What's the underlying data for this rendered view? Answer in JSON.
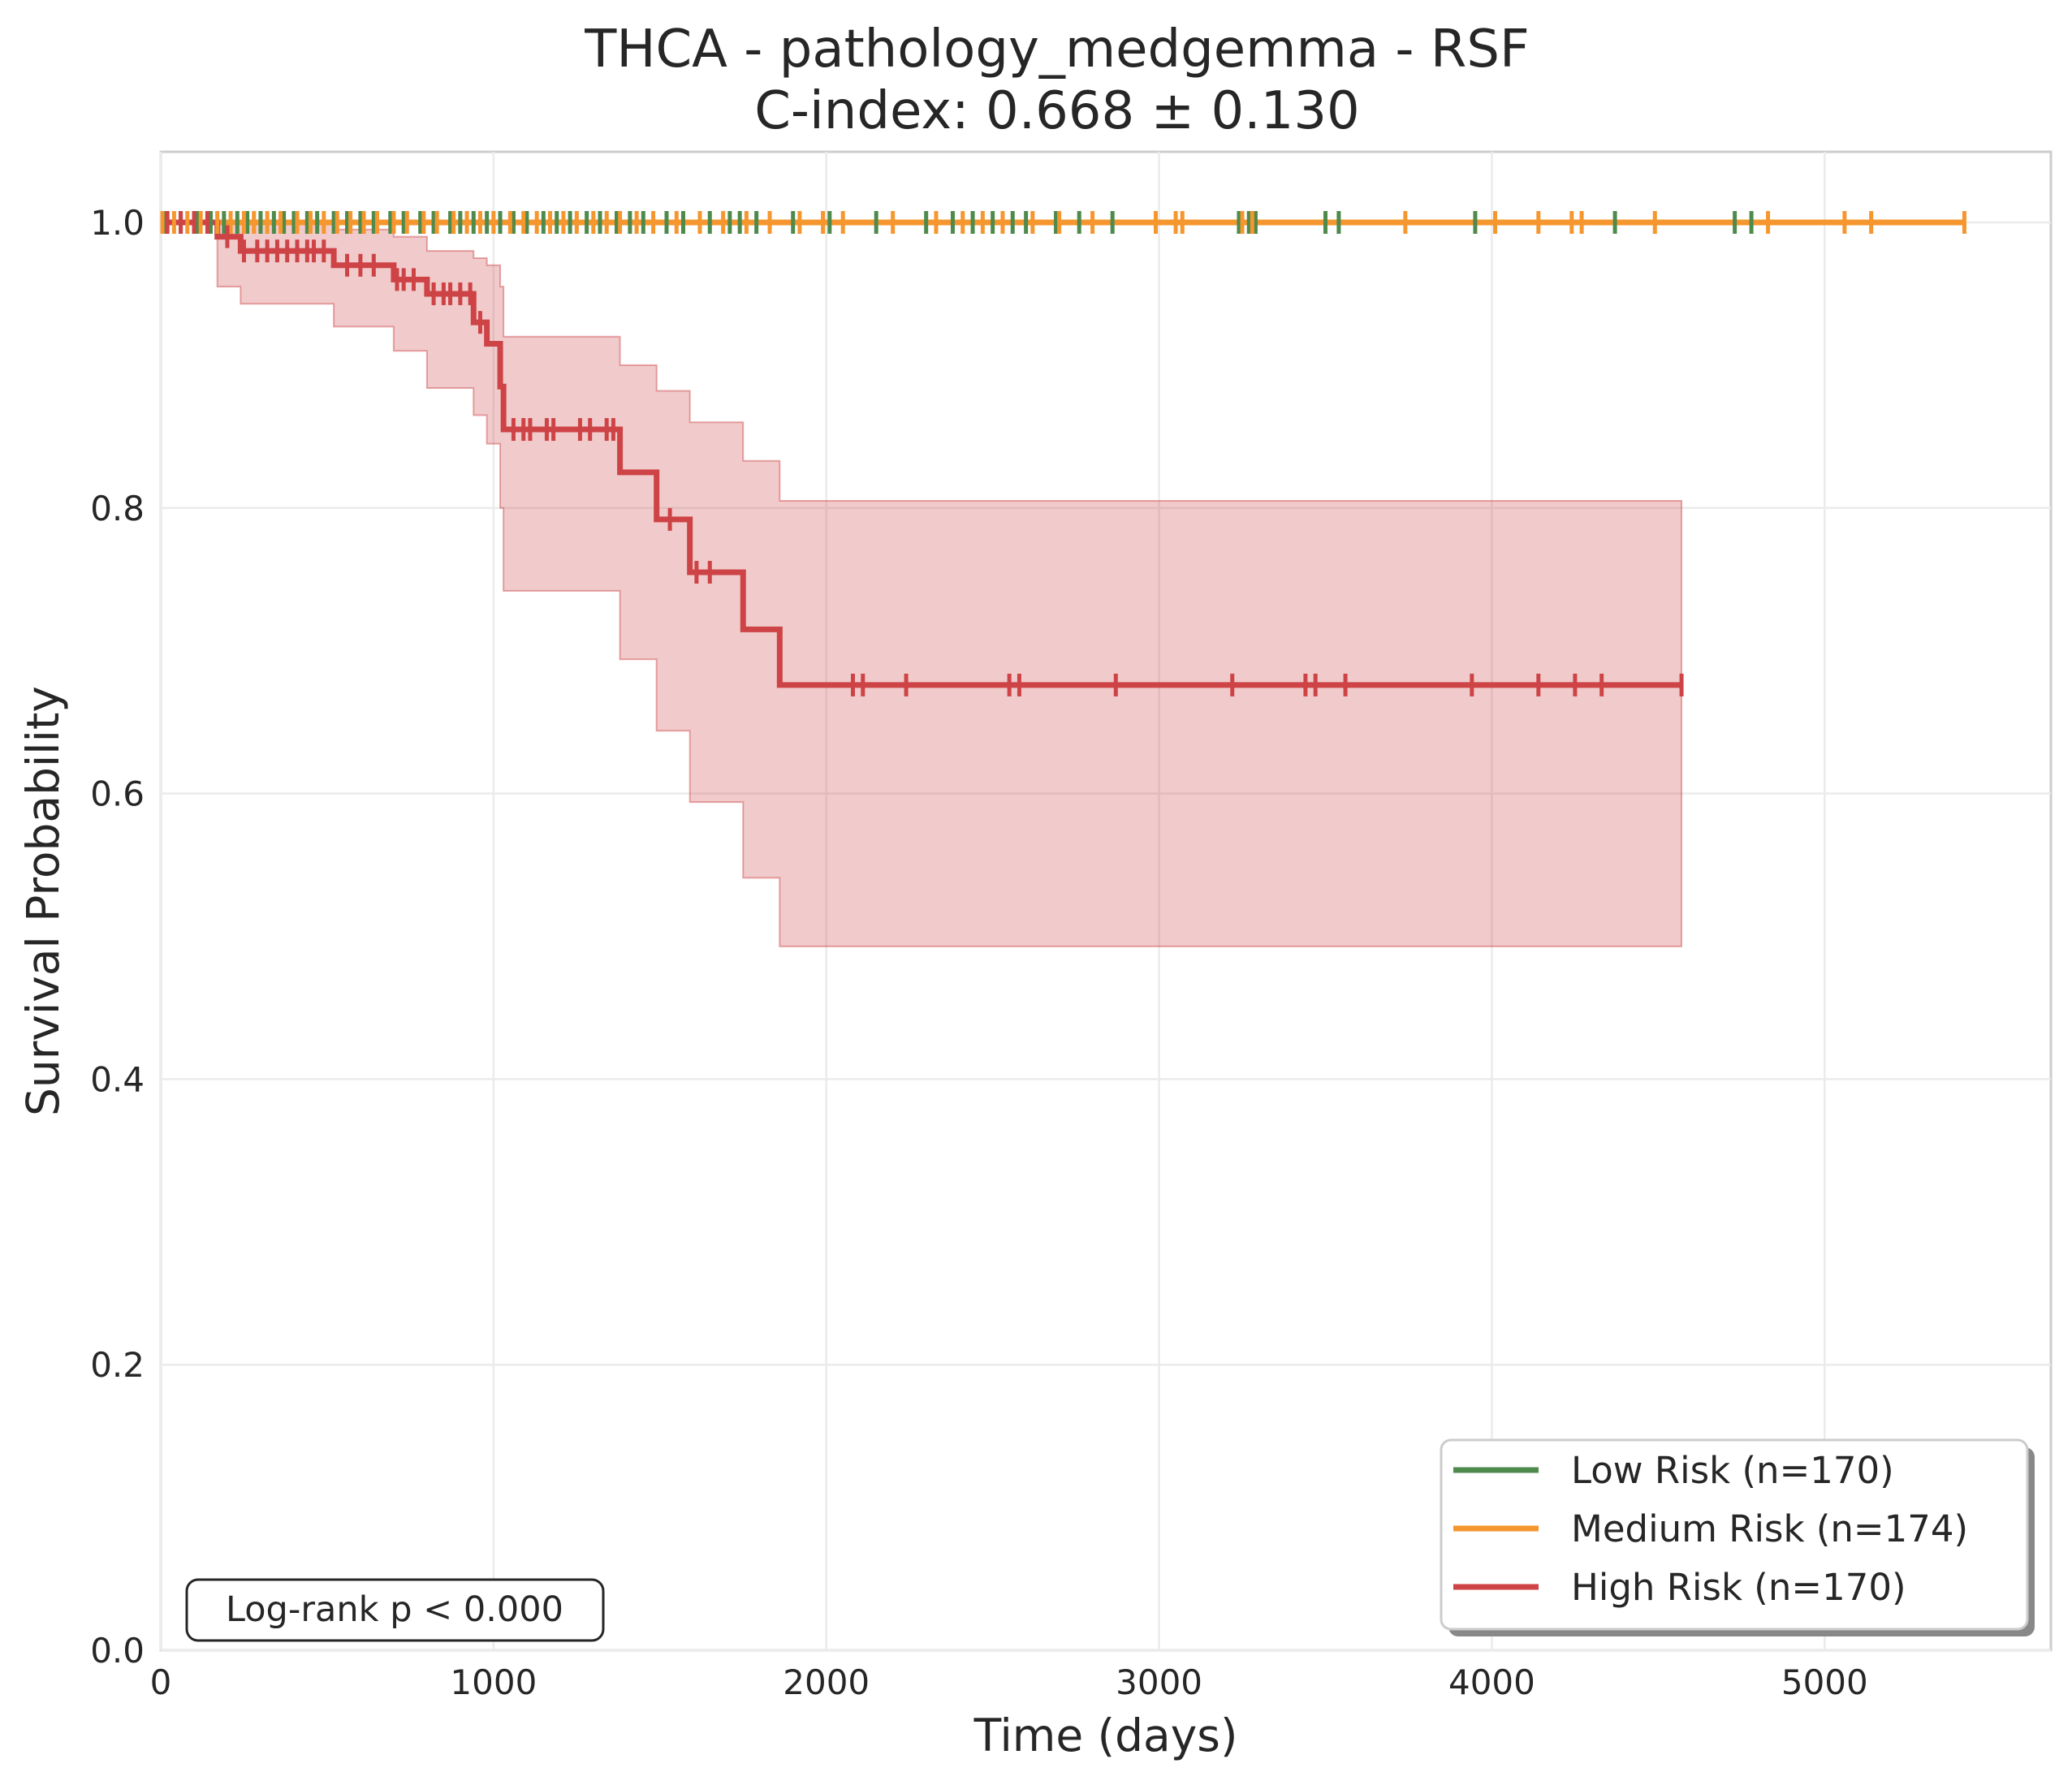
{
  "chart_data": {
    "type": "line",
    "subtype": "kaplan-meier",
    "title": "THCA - pathology_medgemma - RSF",
    "subtitle": "C-index: 0.668 ± 0.130",
    "xlabel": "Time (days)",
    "ylabel": "Survival Probability",
    "xlim": [
      0,
      5680
    ],
    "ylim": [
      0.0,
      1.05
    ],
    "xticks": [
      0,
      1000,
      2000,
      3000,
      4000,
      5000
    ],
    "xtick_labels": [
      "0",
      "1000",
      "2000",
      "3000",
      "4000",
      "5000"
    ],
    "yticks": [
      0.0,
      0.2,
      0.4,
      0.6,
      0.8,
      1.0
    ],
    "ytick_labels": [
      "0.0",
      "0.2",
      "0.4",
      "0.6",
      "0.8",
      "1.0"
    ],
    "grid": true,
    "legend_position": "lower-right",
    "annotation": "Log-rank p < 0.000",
    "series": [
      {
        "name": "Low Risk (n=170)",
        "color": "#4e8a4c",
        "steps": [
          [
            0,
            1.0
          ],
          [
            4750,
            1.0
          ]
        ],
        "censored": [
          15,
          60,
          110,
          150,
          190,
          230,
          260,
          300,
          340,
          370,
          400,
          440,
          470,
          520,
          560,
          600,
          640,
          690,
          730,
          780,
          820,
          870,
          900,
          940,
          980,
          1020,
          1060,
          1100,
          1150,
          1190,
          1230,
          1280,
          1320,
          1370,
          1410,
          1450,
          1520,
          1570,
          1650,
          1710,
          1740,
          1790,
          1900,
          2010,
          2150,
          2300,
          2380,
          2440,
          2500,
          2560,
          2600,
          2690,
          2760,
          2860,
          3240,
          3270,
          3290,
          3500,
          3540,
          3950,
          4370,
          4730,
          4780
        ]
      },
      {
        "name": "Medium Risk (n=174)",
        "color": "#f5962e",
        "steps": [
          [
            0,
            1.0
          ],
          [
            5420,
            1.0
          ]
        ],
        "censored": [
          5,
          40,
          80,
          120,
          170,
          210,
          250,
          280,
          320,
          360,
          410,
          450,
          490,
          530,
          570,
          610,
          650,
          700,
          740,
          790,
          830,
          880,
          920,
          960,
          1000,
          1050,
          1090,
          1130,
          1170,
          1210,
          1250,
          1300,
          1340,
          1380,
          1430,
          1480,
          1550,
          1620,
          1690,
          1760,
          1830,
          1920,
          1990,
          2050,
          2200,
          2330,
          2410,
          2470,
          2530,
          2620,
          2700,
          2800,
          2990,
          3050,
          3070,
          3250,
          3280,
          3740,
          4010,
          4140,
          4240,
          4270,
          4490,
          4830,
          5060,
          5140,
          5420
        ]
      },
      {
        "name": "High Risk (n=170)",
        "color": "#cd4346",
        "steps": [
          [
            0,
            1.0
          ],
          [
            170,
            1.0
          ],
          [
            170,
            0.99
          ],
          [
            240,
            0.99
          ],
          [
            240,
            0.98
          ],
          [
            520,
            0.98
          ],
          [
            520,
            0.97
          ],
          [
            700,
            0.97
          ],
          [
            700,
            0.96
          ],
          [
            800,
            0.96
          ],
          [
            800,
            0.95
          ],
          [
            940,
            0.95
          ],
          [
            940,
            0.93
          ],
          [
            980,
            0.93
          ],
          [
            980,
            0.915
          ],
          [
            1020,
            0.915
          ],
          [
            1020,
            0.885
          ],
          [
            1030,
            0.885
          ],
          [
            1030,
            0.855
          ],
          [
            1380,
            0.855
          ],
          [
            1380,
            0.825
          ],
          [
            1490,
            0.825
          ],
          [
            1490,
            0.792
          ],
          [
            1590,
            0.792
          ],
          [
            1590,
            0.755
          ],
          [
            1750,
            0.755
          ],
          [
            1750,
            0.715
          ],
          [
            1860,
            0.715
          ],
          [
            1860,
            0.676
          ],
          [
            4570,
            0.676
          ]
        ],
        "ci_upper": [
          [
            0,
            1.0
          ],
          [
            170,
            1.0
          ],
          [
            240,
            1.0
          ],
          [
            520,
            0.995
          ],
          [
            700,
            0.99
          ],
          [
            800,
            0.98
          ],
          [
            940,
            0.975
          ],
          [
            980,
            0.97
          ],
          [
            1020,
            0.955
          ],
          [
            1030,
            0.92
          ],
          [
            1380,
            0.9
          ],
          [
            1490,
            0.882
          ],
          [
            1590,
            0.86
          ],
          [
            1750,
            0.833
          ],
          [
            1860,
            0.805
          ],
          [
            4570,
            0.805
          ]
        ],
        "ci_lower": [
          [
            0,
            1.0
          ],
          [
            170,
            0.955
          ],
          [
            240,
            0.943
          ],
          [
            520,
            0.927
          ],
          [
            700,
            0.91
          ],
          [
            800,
            0.884
          ],
          [
            940,
            0.865
          ],
          [
            980,
            0.845
          ],
          [
            1020,
            0.8
          ],
          [
            1030,
            0.742
          ],
          [
            1380,
            0.694
          ],
          [
            1490,
            0.644
          ],
          [
            1590,
            0.594
          ],
          [
            1750,
            0.541
          ],
          [
            1860,
            0.493
          ],
          [
            4570,
            0.493
          ]
        ],
        "censored": [
          20,
          60,
          100,
          140,
          200,
          250,
          290,
          320,
          350,
          380,
          410,
          440,
          460,
          490,
          560,
          600,
          640,
          710,
          730,
          760,
          820,
          850,
          870,
          900,
          930,
          960,
          1060,
          1090,
          1110,
          1160,
          1180,
          1260,
          1290,
          1340,
          1360,
          1530,
          1610,
          1650,
          2080,
          2110,
          2240,
          2550,
          2580,
          2870,
          3220,
          3440,
          3470,
          3560,
          3940,
          4140,
          4250,
          4330,
          4570
        ]
      }
    ]
  }
}
